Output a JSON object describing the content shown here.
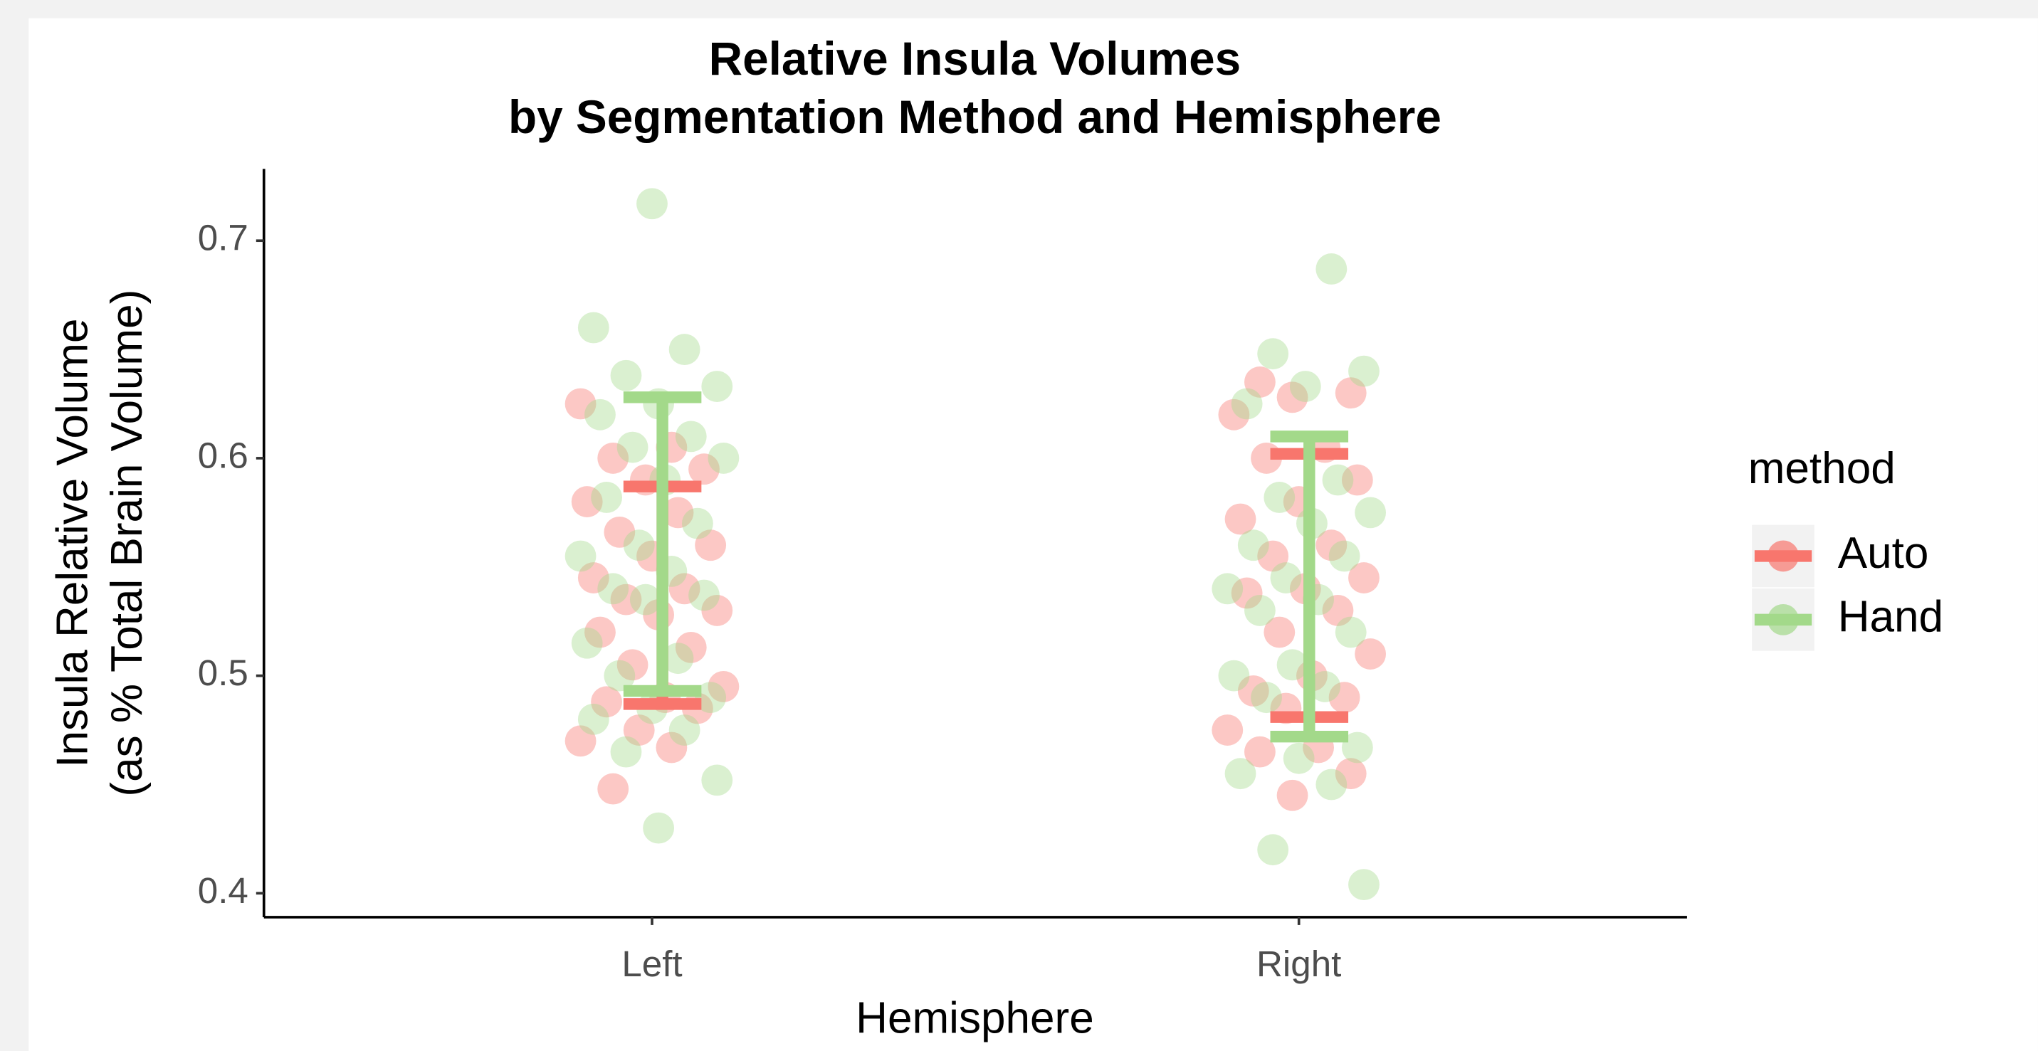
{
  "chart_data": {
    "type": "jitter_errorbar",
    "title": [
      "Relative Insula Volumes",
      "by Segmentation Method and Hemisphere"
    ],
    "x_label": "Hemisphere",
    "y_label": [
      "Insula Relative Volume",
      "(as % Total Brain Volume)"
    ],
    "categories": [
      "Left",
      "Right"
    ],
    "ylim": [
      0.389,
      0.733
    ],
    "yticks": [
      0.4,
      0.5,
      0.6,
      0.7
    ],
    "legend_title": "method",
    "series": [
      {
        "name": "Auto",
        "color": "#F8766D",
        "values": [
          [
            0.625,
            0.605,
            0.6,
            0.595,
            0.59,
            0.58,
            0.575,
            0.566,
            0.56,
            0.555,
            0.545,
            0.54,
            0.535,
            0.53,
            0.528,
            0.52,
            0.513,
            0.505,
            0.495,
            0.49,
            0.488,
            0.485,
            0.475,
            0.47,
            0.467,
            0.448
          ],
          [
            0.635,
            0.63,
            0.628,
            0.62,
            0.605,
            0.6,
            0.59,
            0.58,
            0.572,
            0.56,
            0.555,
            0.545,
            0.54,
            0.538,
            0.53,
            0.52,
            0.51,
            0.5,
            0.493,
            0.49,
            0.485,
            0.475,
            0.467,
            0.465,
            0.455,
            0.445
          ]
        ],
        "error_low": [
          0.487,
          0.481
        ],
        "error_high": [
          0.587,
          0.602
        ]
      },
      {
        "name": "Hand",
        "color": "#A3D98A",
        "values": [
          [
            0.717,
            0.66,
            0.65,
            0.638,
            0.633,
            0.625,
            0.62,
            0.61,
            0.605,
            0.6,
            0.59,
            0.582,
            0.57,
            0.56,
            0.555,
            0.548,
            0.54,
            0.537,
            0.535,
            0.515,
            0.508,
            0.5,
            0.49,
            0.485,
            0.48,
            0.475,
            0.465,
            0.452,
            0.43
          ],
          [
            0.687,
            0.648,
            0.64,
            0.633,
            0.625,
            0.59,
            0.582,
            0.575,
            0.57,
            0.56,
            0.555,
            0.545,
            0.54,
            0.535,
            0.53,
            0.52,
            0.505,
            0.5,
            0.495,
            0.49,
            0.467,
            0.462,
            0.455,
            0.45,
            0.42,
            0.404
          ]
        ],
        "error_low": [
          0.493,
          0.472
        ],
        "error_high": [
          0.628,
          0.61
        ]
      }
    ]
  }
}
